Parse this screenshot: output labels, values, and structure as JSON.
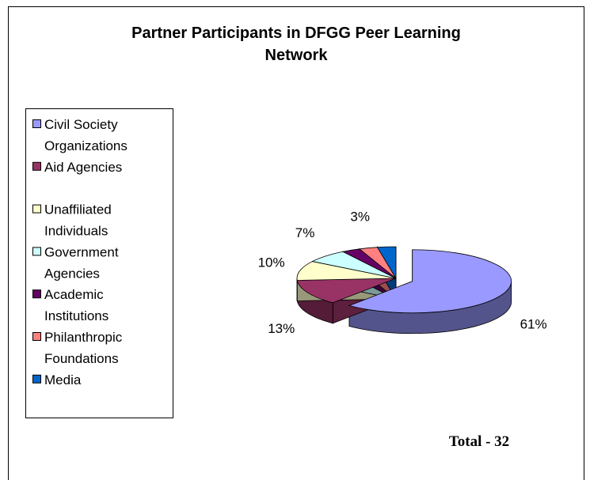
{
  "chart_data": {
    "type": "pie3d",
    "title": "Partner Participants in DFGG Peer Learning Network",
    "categories": [
      "Civil Society Organizations",
      "Aid Agencies",
      "Unaffiliated Individuals",
      "Government Agencies",
      "Academic Institutions",
      "Philanthropic Foundations",
      "Media"
    ],
    "values": [
      61,
      13,
      10,
      7,
      3,
      3,
      3
    ],
    "value_labels": [
      "61%",
      "13%",
      "10%",
      "7%",
      null,
      "3%",
      null
    ],
    "colors": [
      "#9999ff",
      "#993366",
      "#ffffcc",
      "#ccffff",
      "#660066",
      "#ff8080",
      "#0066cc"
    ],
    "annotation": "Total - 32",
    "legend": "left"
  }
}
